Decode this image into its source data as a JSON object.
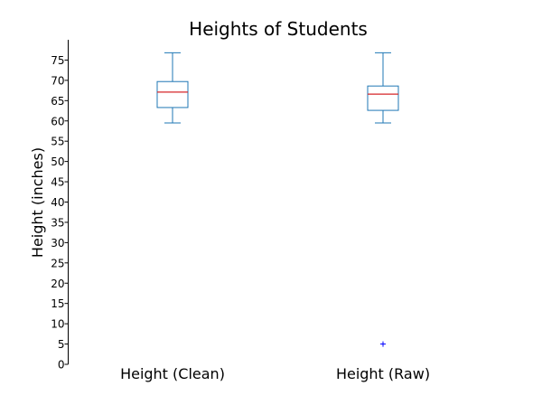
{
  "chart_data": {
    "type": "box",
    "title": "Heights of Students",
    "xlabel": "",
    "ylabel": "Height (inches)",
    "ylim": [
      0,
      80
    ],
    "yticks": [
      0,
      5,
      10,
      15,
      20,
      25,
      30,
      35,
      40,
      45,
      50,
      55,
      60,
      65,
      70,
      75
    ],
    "grid": false,
    "categories": [
      "Height (Clean)",
      "Height (Raw)"
    ],
    "boxes": [
      {
        "category": "Height (Clean)",
        "whisker_low": 59.5,
        "q1": 63.3,
        "median": 67.1,
        "q3": 69.7,
        "whisker_high": 76.8,
        "outliers": []
      },
      {
        "category": "Height (Raw)",
        "whisker_low": 59.5,
        "q1": 62.6,
        "median": 66.6,
        "q3": 68.6,
        "whisker_high": 76.8,
        "outliers": [
          5
        ]
      }
    ],
    "colors": {
      "box": "#1f77b4",
      "median": "#d62728",
      "outlier": "#0000ff",
      "axis": "#000000"
    }
  }
}
